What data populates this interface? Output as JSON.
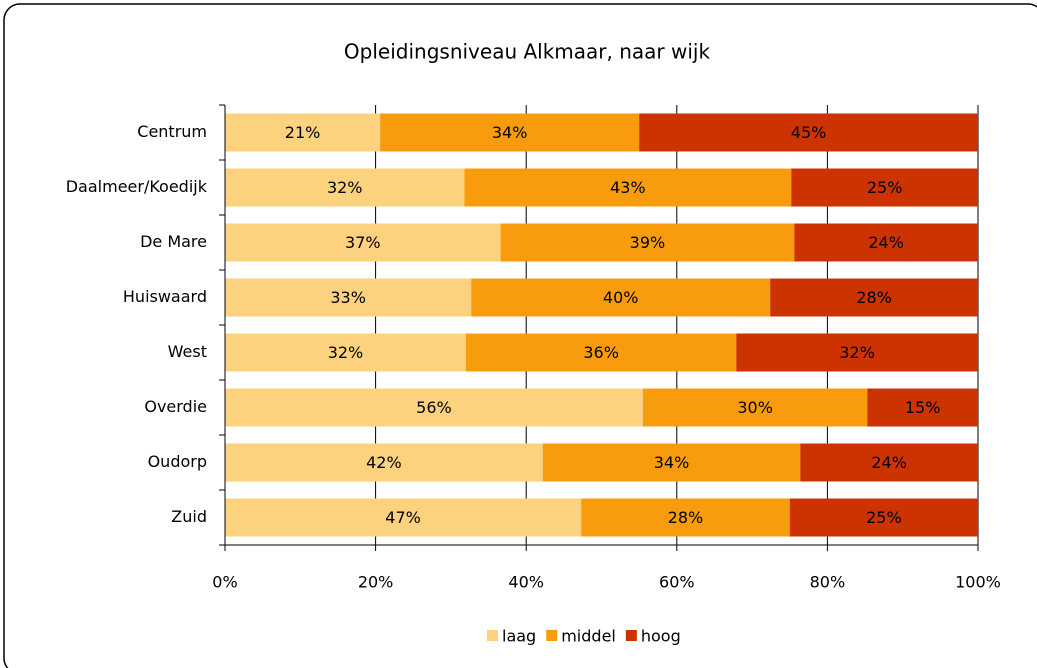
{
  "chart_data": {
    "type": "stacked_bar_horizontal",
    "title": "Opleidingsniveau Alkmaar, naar wijk",
    "categories": [
      "Centrum",
      "Daalmeer/Koedijk",
      "De Mare",
      "Huiswaard",
      "West",
      "Overdie",
      "Oudorp",
      "Zuid"
    ],
    "series": [
      {
        "name": "laag",
        "color": "#fdd27e",
        "values": [
          20.6,
          31.8,
          36.6,
          32.7,
          32.0,
          55.5,
          42.2,
          47.3
        ],
        "value_labels": [
          "21%",
          "32%",
          "37%",
          "33%",
          "32%",
          "56%",
          "42%",
          "47%"
        ]
      },
      {
        "name": "middel",
        "color": "#f89c0e",
        "values": [
          34.4,
          43.4,
          39.0,
          39.7,
          35.9,
          29.8,
          34.2,
          27.7
        ],
        "value_labels": [
          "34%",
          "43%",
          "39%",
          "40%",
          "36%",
          "30%",
          "34%",
          "28%"
        ]
      },
      {
        "name": "hoog",
        "color": "#cc3300",
        "values": [
          45.0,
          24.8,
          24.4,
          27.6,
          32.1,
          14.7,
          23.6,
          25.0
        ],
        "value_labels": [
          "45%",
          "25%",
          "24%",
          "28%",
          "32%",
          "15%",
          "24%",
          "25%"
        ]
      }
    ],
    "xlim": [
      0,
      100
    ],
    "xticks": [
      {
        "value": 0,
        "label": "0%"
      },
      {
        "value": 20,
        "label": "20%"
      },
      {
        "value": 40,
        "label": "40%"
      },
      {
        "value": 60,
        "label": "60%"
      },
      {
        "value": 80,
        "label": "80%"
      },
      {
        "value": 100,
        "label": "100%"
      }
    ],
    "grid": true,
    "legend": "bottom"
  }
}
